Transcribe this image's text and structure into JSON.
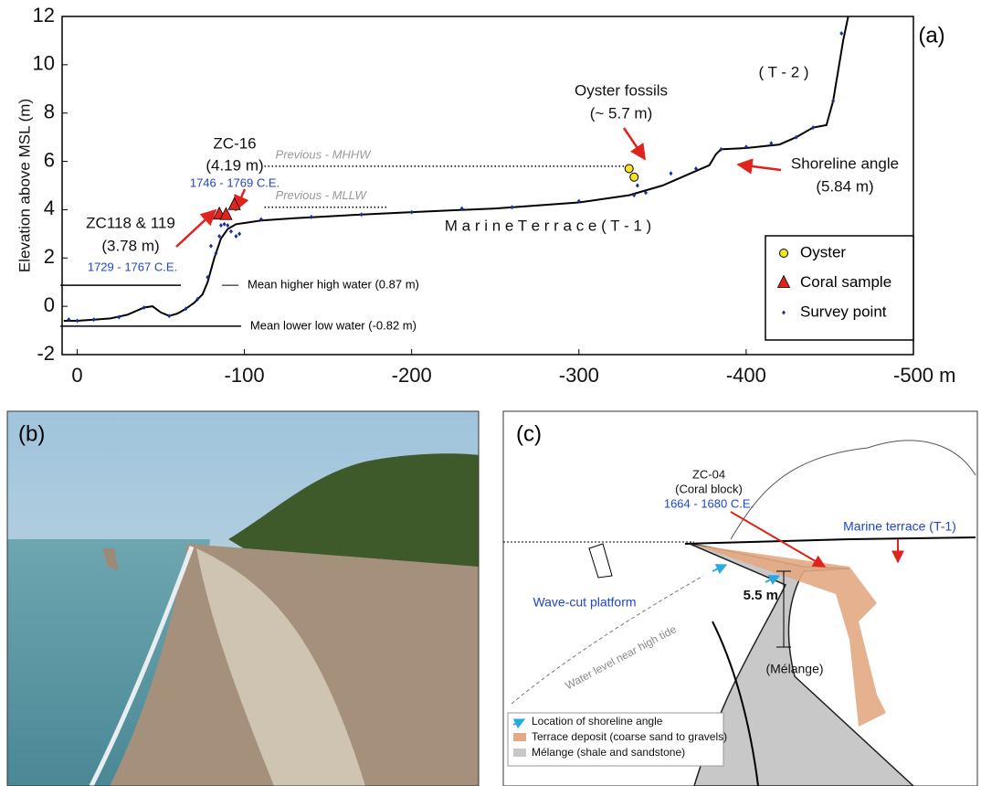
{
  "chart_data": {
    "type": "line",
    "panel_label": "(a)",
    "y_label": "Elevation above MSL (m)",
    "xlim": [
      9,
      -500
    ],
    "ylim": [
      -2,
      12
    ],
    "xticks": [
      0,
      -100,
      -200,
      -300,
      -400,
      {
        "value": -500,
        "label": "-500 m"
      }
    ],
    "yticks": [
      -2,
      0,
      2,
      4,
      6,
      8,
      10,
      12
    ],
    "profile": {
      "color": "#000000",
      "x": [
        8,
        0,
        -10,
        -20,
        -30,
        -40,
        -45,
        -50,
        -55,
        -60,
        -65,
        -70,
        -75,
        -78,
        -82,
        -86,
        -90,
        -95,
        -100,
        -110,
        -130,
        -170,
        -200,
        -250,
        -300,
        -330,
        -350,
        -370,
        -378,
        -382,
        -385,
        -400,
        -420,
        -430,
        -440,
        -448,
        -452,
        -458,
        -461
      ],
      "values": [
        -0.6,
        -0.6,
        -0.55,
        -0.5,
        -0.35,
        -0.05,
        0,
        -0.25,
        -0.4,
        -0.3,
        -0.1,
        0.15,
        0.5,
        1.0,
        2.0,
        2.8,
        3.2,
        3.4,
        3.45,
        3.55,
        3.65,
        3.8,
        3.9,
        4.05,
        4.3,
        4.6,
        5.0,
        5.6,
        5.84,
        6.3,
        6.5,
        6.55,
        6.7,
        7.0,
        7.4,
        7.5,
        8.5,
        11,
        12
      ]
    },
    "series": [
      {
        "name": "Oyster",
        "color": "#f5e51e",
        "marker": "circle",
        "x": [
          -330,
          -333
        ],
        "values": [
          5.7,
          5.35
        ]
      },
      {
        "name": "Coral sample",
        "color": "#e0231c",
        "marker": "triangle",
        "x": [
          -85,
          -89,
          -94
        ],
        "values": [
          3.8,
          3.78,
          4.19
        ]
      },
      {
        "name": "Survey point",
        "color": "#1a2f9c",
        "marker": "diamond",
        "x": [
          5,
          0,
          -10,
          -25,
          -40,
          -55,
          -65,
          -72,
          -78,
          -80,
          -83,
          -85,
          -86,
          -88,
          -90,
          -92,
          -95,
          -97,
          -110,
          -140,
          -170,
          -200,
          -230,
          -260,
          -300,
          -333,
          -335,
          -340,
          -355,
          -370,
          -385,
          -400,
          -415,
          -430,
          -440,
          -452,
          -457
        ],
        "values": [
          -0.55,
          -0.6,
          -0.55,
          -0.45,
          -0.05,
          -0.4,
          -0.1,
          0.3,
          1.2,
          2.5,
          2.2,
          2.9,
          3.35,
          3.4,
          3.35,
          3.1,
          2.9,
          3.0,
          3.6,
          3.7,
          3.8,
          3.9,
          4.05,
          4.1,
          4.35,
          4.6,
          5.0,
          4.7,
          5.5,
          5.7,
          6.5,
          6.6,
          6.75,
          7.0,
          7.4,
          8.5,
          11.3
        ]
      }
    ],
    "legend": "lower right",
    "reference_lines": [
      {
        "label": "Mean higher high water (0.87 m)",
        "value": 0.87,
        "x": [
          10,
          -62
        ],
        "style": "solid"
      },
      {
        "label": "Mean lower low water (-0.82 m)",
        "value": -0.82,
        "x": [
          10,
          -98
        ],
        "style": "solid"
      },
      {
        "label": "Previous - MHHW",
        "value": 5.8,
        "x": [
          -112,
          -332
        ],
        "style": "dotted"
      },
      {
        "label": "Previous - MLLW",
        "value": 4.1,
        "x": [
          -112,
          -185
        ],
        "style": "dotted"
      }
    ],
    "annotations": [
      "ZC118 & 119",
      "(3.78 m)",
      "1729 - 1767 C.E.",
      "ZC-16",
      "(4.19 m)",
      "1746 - 1769 C.E.",
      "Oyster fossils",
      "(~ 5.7 m)",
      "( T - 2 )",
      "Shoreline angle",
      "(5.84 m)",
      "M a r i n e   T e r r a c e   ( T - 1 )"
    ]
  },
  "panels": {
    "b": {
      "label": "(b)"
    },
    "c": {
      "label": "(c)",
      "texts": [
        "ZC-04",
        "(Coral block)",
        "1664 - 1680 C.E.",
        "Marine terrace (T-1)",
        "5.5 m",
        "Wave-cut platform",
        "Water level near high tide",
        "(Mélange)"
      ],
      "legend": [
        "Location of shoreline angle",
        "Terrace deposit (coarse sand to gravels)",
        "Mélange (shale and sandstone)"
      ]
    }
  }
}
